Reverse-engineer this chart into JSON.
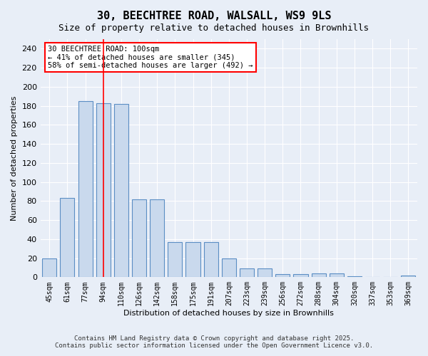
{
  "title": "30, BEECHTREE ROAD, WALSALL, WS9 9LS",
  "subtitle": "Size of property relative to detached houses in Brownhills",
  "xlabel": "Distribution of detached houses by size in Brownhills",
  "ylabel": "Number of detached properties",
  "categories": [
    "45sqm",
    "61sqm",
    "77sqm",
    "94sqm",
    "110sqm",
    "126sqm",
    "142sqm",
    "158sqm",
    "175sqm",
    "191sqm",
    "207sqm",
    "223sqm",
    "239sqm",
    "256sqm",
    "272sqm",
    "288sqm",
    "304sqm",
    "320sqm",
    "337sqm",
    "353sqm",
    "369sqm"
  ],
  "values": [
    20,
    83,
    185,
    183,
    182,
    82,
    82,
    37,
    37,
    37,
    20,
    9,
    9,
    3,
    3,
    4,
    4,
    1,
    0,
    0,
    2
  ],
  "bar_color": "#c9d9ed",
  "bar_edge_color": "#5b8ec4",
  "background_color": "#e8eef7",
  "red_line_x": 3,
  "annotation_text": "30 BEECHTREE ROAD: 100sqm\n← 41% of detached houses are smaller (345)\n58% of semi-detached houses are larger (492) →",
  "annotation_box_color": "white",
  "annotation_box_edge": "red",
  "ylim": [
    0,
    250
  ],
  "yticks": [
    0,
    20,
    40,
    60,
    80,
    100,
    120,
    140,
    160,
    180,
    200,
    220,
    240
  ],
  "footer_line1": "Contains HM Land Registry data © Crown copyright and database right 2025.",
  "footer_line2": "Contains public sector information licensed under the Open Government Licence v3.0."
}
